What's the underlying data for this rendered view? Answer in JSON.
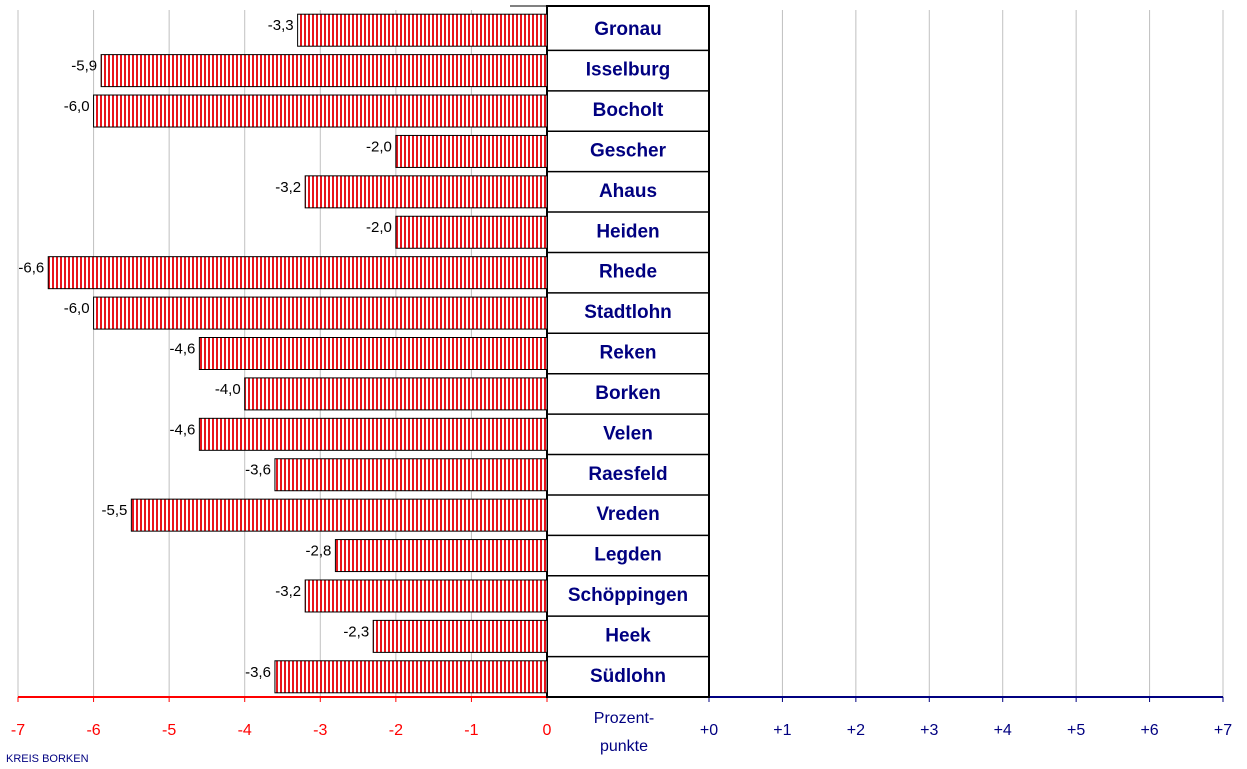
{
  "chart_data": {
    "type": "bar",
    "orientation": "horizontal",
    "categories": [
      "Gronau",
      "Isselburg",
      "Bocholt",
      "Gescher",
      "Ahaus",
      "Heiden",
      "Rhede",
      "Stadtlohn",
      "Reken",
      "Borken",
      "Velen",
      "Raesfeld",
      "Vreden",
      "Legden",
      "Schöppingen",
      "Heek",
      "Südlohn"
    ],
    "values": [
      -3.3,
      -5.9,
      -6.0,
      -2.0,
      -3.2,
      -2.0,
      -6.6,
      -6.0,
      -4.6,
      -4.0,
      -4.6,
      -3.6,
      -5.5,
      -2.8,
      -3.2,
      -2.3,
      -3.6
    ],
    "value_labels": [
      "-3,3",
      "-5,9",
      "-6,0",
      "-2,0",
      "-3,2",
      "-2,0",
      "-6,6",
      "-6,0",
      "-4,6",
      "-4,0",
      "-4,6",
      "-3,6",
      "-5,5",
      "-2,8",
      "-3,2",
      "-2,3",
      "-3,6"
    ],
    "color": "#e8141c",
    "xlim": [
      -7,
      0
    ],
    "xticks": [
      -7,
      -6,
      -5,
      -4,
      -3,
      -2,
      -1,
      0
    ],
    "xaxis_color": "#ff0000",
    "x2lim": [
      0,
      7
    ],
    "x2ticks": [
      {
        "value": 0,
        "label": "+0"
      },
      {
        "value": 1,
        "label": "+1"
      },
      {
        "value": 2,
        "label": "+2"
      },
      {
        "value": 3,
        "label": "+3"
      },
      {
        "value": 4,
        "label": "+4"
      },
      {
        "value": 5,
        "label": "+5"
      },
      {
        "value": 6,
        "label": "+6"
      },
      {
        "value": 7,
        "label": "+7"
      }
    ],
    "x2axis_color": "#000080",
    "xlabel": [
      "Prozent-",
      "punkte"
    ],
    "source": "KREIS BORKEN",
    "grid": true
  }
}
